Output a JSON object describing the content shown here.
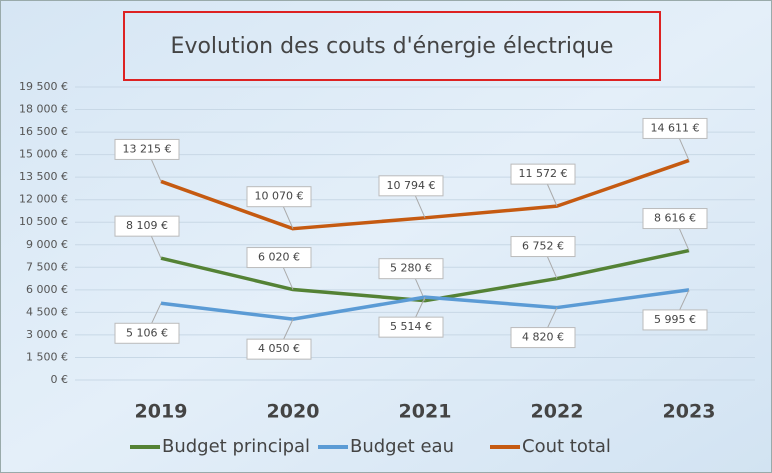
{
  "chart_data": {
    "type": "line",
    "title": "Evolution des couts d'énergie électrique",
    "categories": [
      "2019",
      "2020",
      "2021",
      "2022",
      "2023"
    ],
    "series": [
      {
        "name": "Budget principal",
        "color": "#548235",
        "values": [
          8109,
          6020,
          5280,
          6752,
          8616
        ],
        "value_labels": [
          "8 109 €",
          "6 020 €",
          "5 280 €",
          "6 752 €",
          "8 616 €"
        ]
      },
      {
        "name": "Budget eau",
        "color": "#5b9bd5",
        "values": [
          5106,
          4050,
          5514,
          4820,
          5995
        ],
        "value_labels": [
          "5 106 €",
          "4 050 €",
          "5 514 €",
          "4 820 €",
          "5 995 €"
        ]
      },
      {
        "name": "Cout total",
        "color": "#c55a11",
        "values": [
          13215,
          10070,
          10794,
          11572,
          14611
        ],
        "value_labels": [
          "13 215 €",
          "10 070 €",
          "10 794 €",
          "11 572 €",
          "14 611 €"
        ]
      }
    ],
    "ylim": [
      0,
      19500
    ],
    "yticks": [
      {
        "value": 0,
        "label": "0 €"
      },
      {
        "value": 1500,
        "label": "1 500 €"
      },
      {
        "value": 3000,
        "label": "3 000 €"
      },
      {
        "value": 4500,
        "label": "4 500 €"
      },
      {
        "value": 6000,
        "label": "6 000 €"
      },
      {
        "value": 7500,
        "label": "7 500 €"
      },
      {
        "value": 9000,
        "label": "9 000 €"
      },
      {
        "value": 10500,
        "label": "10 500 €"
      },
      {
        "value": 12000,
        "label": "12 000 €"
      },
      {
        "value": 13500,
        "label": "13 500 €"
      },
      {
        "value": 15000,
        "label": "15 000 €"
      },
      {
        "value": 16500,
        "label": "16 500 €"
      },
      {
        "value": 18000,
        "label": "18 000 €"
      },
      {
        "value": 19500,
        "label": "19 500 €"
      }
    ],
    "grid": true
  }
}
